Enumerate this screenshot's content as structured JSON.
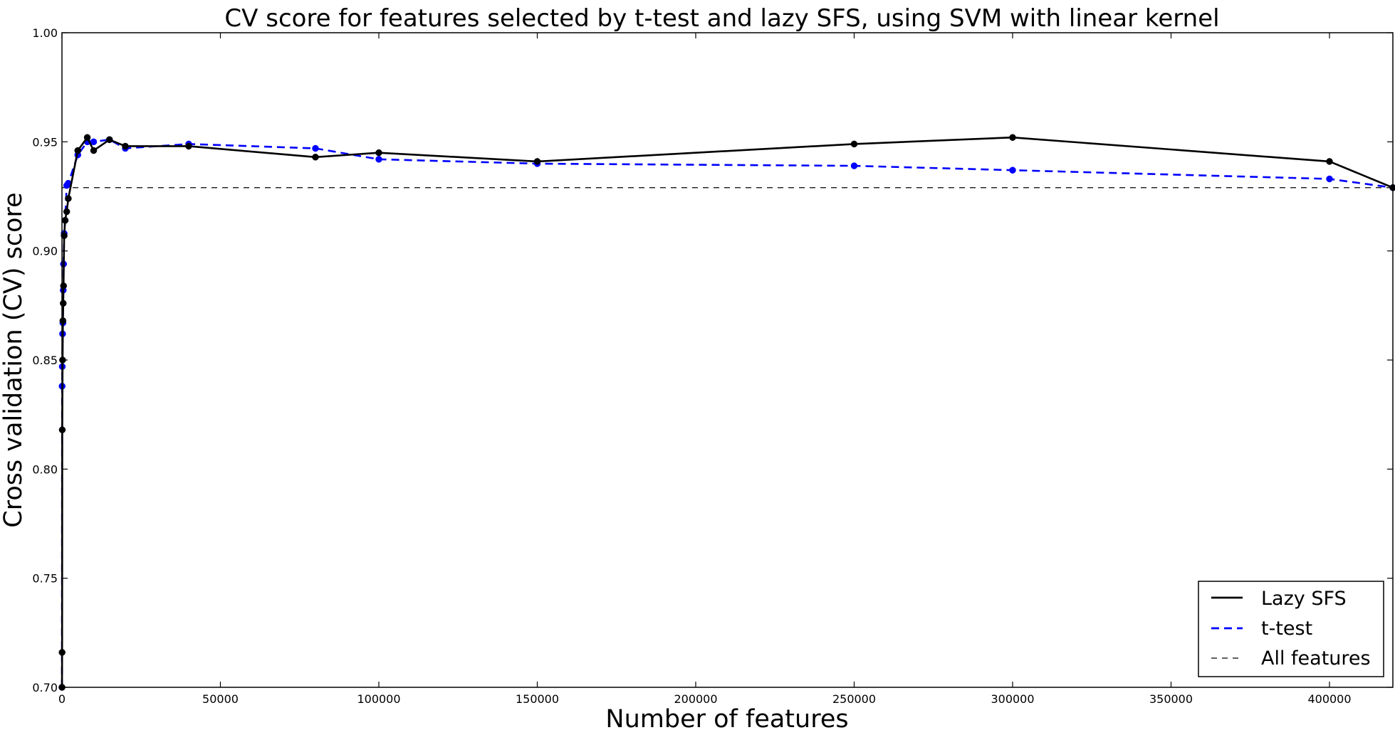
{
  "chart_data": {
    "type": "line",
    "title": "CV score for features selected by t-test and lazy SFS, using SVM with linear kernel",
    "xlabel": "Number of features",
    "ylabel": "Cross validation (CV) score",
    "xlim": [
      0,
      420000
    ],
    "ylim": [
      0.7,
      1.0
    ],
    "x_ticks": [
      0,
      50000,
      100000,
      150000,
      200000,
      250000,
      300000,
      350000,
      400000
    ],
    "y_ticks": [
      0.7,
      0.75,
      0.8,
      0.85,
      0.9,
      0.95,
      1.0
    ],
    "x_tick_labels": [
      "0",
      "50000",
      "100000",
      "150000",
      "200000",
      "250000",
      "300000",
      "350000",
      "400000"
    ],
    "y_tick_labels": [
      "0.70",
      "0.75",
      "0.80",
      "0.85",
      "0.90",
      "0.95",
      "1.00"
    ],
    "grid": false,
    "legend_position": "bottom-right",
    "series": [
      {
        "name": "Lazy SFS",
        "color": "#000000",
        "line_style": "solid",
        "x": [
          10,
          50,
          100,
          200,
          300,
          400,
          500,
          700,
          1000,
          1500,
          2000,
          5000,
          8000,
          10000,
          15000,
          20000,
          40000,
          80000,
          100000,
          150000,
          250000,
          300000,
          400000,
          420000
        ],
        "y": [
          0.7,
          0.716,
          0.818,
          0.85,
          0.868,
          0.876,
          0.884,
          0.907,
          0.914,
          0.918,
          0.924,
          0.946,
          0.952,
          0.946,
          0.951,
          0.948,
          0.948,
          0.943,
          0.945,
          0.941,
          0.949,
          0.952,
          0.941,
          0.929
        ]
      },
      {
        "name": "t-test",
        "color": "#0000ff",
        "line_style": "dashed",
        "x": [
          10,
          50,
          100,
          200,
          300,
          400,
          500,
          700,
          1000,
          1500,
          2000,
          5000,
          8000,
          10000,
          15000,
          20000,
          40000,
          80000,
          100000,
          150000,
          250000,
          300000,
          400000,
          420000
        ],
        "y": [
          0.7,
          0.838,
          0.847,
          0.862,
          0.867,
          0.882,
          0.894,
          0.908,
          0.914,
          0.93,
          0.931,
          0.944,
          0.95,
          0.95,
          0.951,
          0.947,
          0.949,
          0.947,
          0.942,
          0.94,
          0.939,
          0.937,
          0.933,
          0.929
        ]
      },
      {
        "name": "All features",
        "color": "#000000",
        "line_style": "dashed",
        "x": [
          0,
          420000
        ],
        "y": [
          0.929,
          0.929
        ]
      }
    ]
  }
}
